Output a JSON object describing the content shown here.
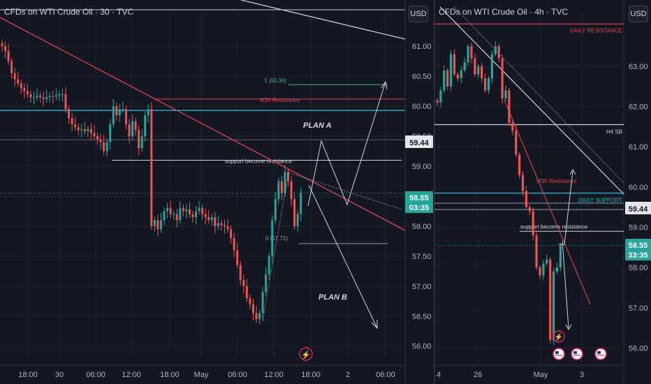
{
  "colors": {
    "bg": "#131722",
    "grid": "#1f2430",
    "axis_text": "#b2b5be",
    "up": "#26a69a",
    "down": "#ef5350",
    "white": "#d1d4dc",
    "cyan": "#22b6c8",
    "red_line": "#e0404e",
    "fib": "#4caf7a"
  },
  "left_panel": {
    "title": "CFDs on WTI Crude Oil · 30 · TVC",
    "currency_button": "USD",
    "price_ticks": [
      "61.00",
      "60.50",
      "60.00",
      "59.50",
      "59.00",
      "58.50",
      "58.00",
      "57.50",
      "57.00",
      "56.50",
      "56.00"
    ],
    "time_ticks": [
      "18:00",
      "30",
      "06:00",
      "12:00",
      "18:00",
      "May",
      "06:00",
      "12:00",
      "18:00",
      "2",
      "06:00"
    ],
    "labels": {
      "m30_resistance": "M30 Resistance",
      "fib_1": "1 (60.36)",
      "fib_0": "0 (57.71)",
      "plan_a": "PLAN A",
      "plan_b": "PLAN B",
      "support_resistance": "support become resistance"
    },
    "price_tags": {
      "level": "59.44",
      "last": "58.55",
      "countdown": "03:35"
    },
    "event_icon": "lightning-icon"
  },
  "right_panel": {
    "title": "CFDs on WTI Crude Oil · 4h · TVC",
    "currency_button": "USD",
    "price_ticks": [
      "63.00",
      "62.00",
      "61.00",
      "60.00",
      "59.00",
      "58.00",
      "57.00",
      "56.00"
    ],
    "time_ticks": [
      "4",
      "26",
      "May",
      "3"
    ],
    "labels": {
      "daily_resistance": "DAILY RESISTANCE",
      "h4_sb": "H4 SB",
      "daily_support": "DAILY SUPPORT",
      "m30_resistance": "M30 Resistance",
      "support_resistance": "support become resistance"
    },
    "price_tags": {
      "level": "59.44",
      "last": "58.55",
      "countdown": "33:35"
    },
    "event_icons": [
      "lightning-icon",
      "us-flag-icon",
      "us-flag-icon",
      "us-flag-icon"
    ]
  },
  "chart_data": [
    {
      "type": "candlestick",
      "title": "CFDs on WTI Crude Oil · 30 · TVC",
      "ylim": [
        55.95,
        61.55
      ],
      "y_ticks": [
        61.0,
        60.5,
        60.0,
        59.5,
        59.0,
        58.5,
        58.0,
        57.5,
        57.0,
        56.5,
        56.0
      ],
      "x_ticks": [
        "18:00",
        "30",
        "06:00",
        "12:00",
        "18:00",
        "May",
        "06:00",
        "12:00",
        "18:00",
        "2",
        "06:00"
      ],
      "last_price": 58.55,
      "marked_levels": [
        59.44
      ],
      "fib_levels": [
        {
          "label": "1 (60.36)",
          "price": 60.36
        },
        {
          "label": "0 (57.71)",
          "price": 57.71
        }
      ],
      "closes": [
        61.0,
        60.92,
        60.75,
        60.55,
        60.45,
        60.38,
        60.3,
        60.25,
        60.2,
        60.15,
        60.15,
        60.18,
        60.15,
        60.12,
        60.15,
        60.17,
        60.16,
        60.18,
        60.2,
        60.2,
        59.95,
        59.8,
        59.7,
        59.65,
        59.6,
        59.62,
        59.58,
        59.62,
        59.55,
        59.5,
        59.45,
        59.4,
        59.25,
        59.4,
        59.7,
        60.0,
        59.85,
        59.95,
        59.95,
        59.7,
        59.5,
        59.75,
        59.6,
        59.3,
        59.5,
        59.85,
        59.95,
        58.0,
        58.1,
        57.95,
        58.1,
        58.25,
        58.3,
        58.2,
        58.2,
        58.1,
        58.3,
        58.25,
        58.28,
        58.2,
        58.15,
        58.25,
        58.3,
        58.2,
        58.15,
        58.1,
        58.15,
        58.0,
        58.05,
        58.02,
        58.0,
        57.95,
        57.8,
        57.6,
        57.35,
        57.1,
        57.0,
        56.8,
        56.7,
        56.55,
        56.45,
        56.55,
        56.9,
        57.2,
        57.5,
        58.1,
        58.45,
        58.75,
        58.55,
        58.9,
        58.75,
        58.45,
        58.0,
        58.2,
        58.55
      ],
      "series": [
        {
          "name": "",
          "kind": "trendline",
          "color": "#e0404e"
        },
        {
          "name": "",
          "kind": "level",
          "price": 60.12,
          "color": "#e0404e"
        },
        {
          "name": "",
          "kind": "level",
          "price": 59.93,
          "color": "#22b6c8"
        },
        {
          "name": "",
          "kind": "level",
          "price": 59.1,
          "color": "#d1d4dc"
        }
      ]
    },
    {
      "type": "candlestick",
      "title": "CFDs on WTI Crude Oil · 4h · TVC",
      "ylim": [
        55.8,
        64.3
      ],
      "y_ticks": [
        63.0,
        62.0,
        61.0,
        60.0,
        59.0,
        58.0,
        57.0,
        56.0
      ],
      "x_ticks": [
        "4",
        "26",
        "May",
        "3"
      ],
      "last_price": 58.55,
      "marked_levels": [
        59.44
      ],
      "closes": [
        62.1,
        62.4,
        62.9,
        62.5,
        63.3,
        62.8,
        62.7,
        62.9,
        63.1,
        63.5,
        63.2,
        62.8,
        63.0,
        62.7,
        62.4,
        62.7,
        63.3,
        63.5,
        63.2,
        62.2,
        62.4,
        61.6,
        61.4,
        60.8,
        60.3,
        59.9,
        59.5,
        59.4,
        58.8,
        58.0,
        57.8,
        58.1,
        58.2,
        56.2,
        57.9,
        58.0,
        58.55
      ],
      "series": [
        {
          "name": "DAILY RESISTANCE",
          "kind": "level",
          "price": 64.05,
          "color": "#e0404e"
        },
        {
          "name": "H4 SB",
          "kind": "level",
          "price": 61.55,
          "color": "#d1d4dc"
        },
        {
          "name": "DAILY SUPPORT",
          "kind": "level",
          "price": 59.85,
          "color": "#22b6c8"
        },
        {
          "name": "M30 Resistance",
          "kind": "trendline",
          "color": "#e0404e"
        }
      ]
    }
  ]
}
